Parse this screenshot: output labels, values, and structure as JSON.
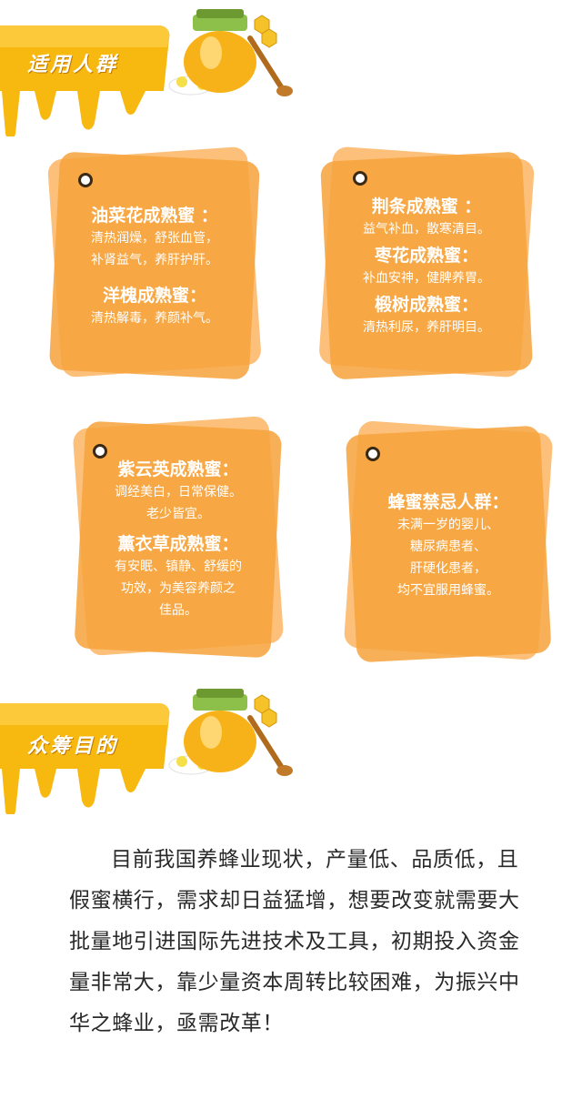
{
  "section1": {
    "title": "适用人群"
  },
  "section2": {
    "title": "众筹目的"
  },
  "cards": [
    {
      "groups": [
        {
          "heading": "油菜花成熟蜜 ：",
          "lines": [
            "清热润燥，舒张血管，",
            "补肾益气，养肝护肝。"
          ]
        },
        {
          "heading": "洋槐成熟蜜：",
          "lines": [
            "清热解毒，养颜补气。"
          ]
        }
      ]
    },
    {
      "groups": [
        {
          "heading": "荆条成熟蜜 ：",
          "lines": [
            "益气补血，散寒清目。"
          ]
        },
        {
          "heading": "枣花成熟蜜：",
          "lines": [
            "补血安神，健脾养胃。"
          ]
        },
        {
          "heading": "椴树成熟蜜：",
          "lines": [
            "清热利尿，养肝明目。"
          ]
        }
      ]
    },
    {
      "groups": [
        {
          "heading": "紫云英成熟蜜：",
          "lines": [
            "调经美白，日常保健。",
            "老少皆宜。"
          ]
        },
        {
          "heading": "薰衣草成熟蜜：",
          "lines": [
            "有安眠、镇静、舒缓的",
            "功效，为美容养颜之",
            "佳品。"
          ]
        }
      ]
    },
    {
      "groups": [
        {
          "heading": "蜂蜜禁忌人群：",
          "lines": [
            "未满一岁的婴儿、",
            "糖尿病患者、",
            "肝硬化患者，",
            "均不宜服用蜂蜜。"
          ]
        }
      ]
    }
  ],
  "paragraph": "目前我国养蜂业现状，产量低、品质低，且假蜜横行，需求却日益猛增，想要改变就需要大批量地引进国际先进技术及工具，初期投入资金量非常大，靠少量资本周转比较困难，为振兴中华之蜂业，亟需改革！",
  "colors": {
    "honey": "#f7b80f",
    "card_back": "#fcc07a",
    "card_front": "#f6a23a"
  }
}
